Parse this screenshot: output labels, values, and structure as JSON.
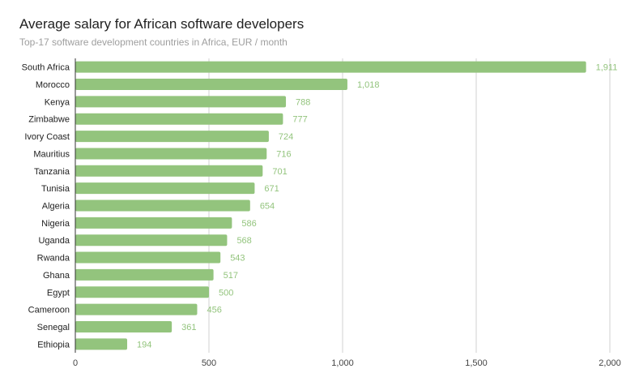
{
  "chart_data": {
    "type": "bar",
    "orientation": "horizontal",
    "title": "Average salary for African software developers",
    "subtitle": "Top-17 software development countries in Africa, EUR / month",
    "categories": [
      "South Africa",
      "Morocco",
      "Kenya",
      "Zimbabwe",
      "Ivory Coast",
      "Mauritius",
      "Tanzania",
      "Tunisia",
      "Algeria",
      "Nigeria",
      "Uganda",
      "Rwanda",
      "Ghana",
      "Egypt",
      "Cameroon",
      "Senegal",
      "Ethiopia"
    ],
    "values": [
      1911,
      1018,
      788,
      777,
      724,
      716,
      701,
      671,
      654,
      586,
      568,
      543,
      517,
      500,
      456,
      361,
      194
    ],
    "value_labels": [
      "1,911",
      "1,018",
      "788",
      "777",
      "724",
      "716",
      "701",
      "671",
      "654",
      "586",
      "568",
      "543",
      "517",
      "500",
      "456",
      "361",
      "194"
    ],
    "xlim": [
      0,
      2000
    ],
    "xticks": [
      0,
      500,
      1000,
      1500,
      2000
    ],
    "xtick_labels": [
      "0",
      "500",
      "1,000",
      "1,500",
      "2,000"
    ],
    "grid": true,
    "bar_color": "#93c47d",
    "label_color": "#93c47d"
  }
}
